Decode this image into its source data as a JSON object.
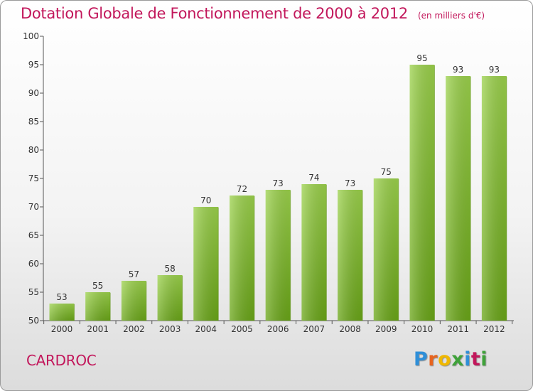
{
  "header": {
    "title": "Dotation Globale de Fonctionnement de 2000 à 2012",
    "subtitle": "(en milliers d'€)"
  },
  "footer": {
    "commune": "CARDROC",
    "logo": {
      "letters": [
        "P",
        "r",
        "o",
        "x",
        "i",
        "t",
        "i"
      ],
      "colors": [
        "#2f8fd8",
        "#e8641e",
        "#f0b800",
        "#3fa23a",
        "#2f8fd8",
        "#c2175b",
        "#3fa23a"
      ]
    }
  },
  "chart_data": {
    "type": "bar",
    "title": "Dotation Globale de Fonctionnement de 2000 à 2012",
    "subtitle": "(en milliers d'€)",
    "categories": [
      "2000",
      "2001",
      "2002",
      "2003",
      "2004",
      "2005",
      "2006",
      "2007",
      "2008",
      "2009",
      "2010",
      "2011",
      "2012"
    ],
    "values": [
      53,
      55,
      57,
      58,
      70,
      72,
      73,
      74,
      73,
      75,
      95,
      93,
      93
    ],
    "ylim": [
      50,
      100
    ],
    "yticks": [
      "50",
      "55",
      "60",
      "65",
      "70",
      "75",
      "80",
      "85",
      "90",
      "95",
      "100"
    ],
    "grid": false,
    "colors": {
      "bar_light": "#9cd24c",
      "bar_dark": "#6aa618",
      "axis": "#555555",
      "title": "#c2175b"
    }
  }
}
